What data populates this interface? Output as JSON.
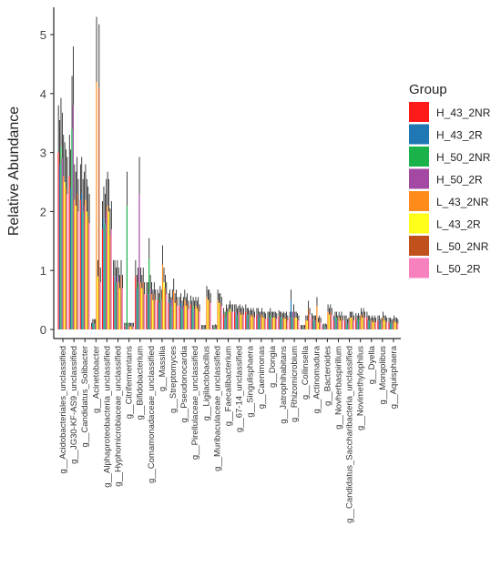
{
  "chart_data": {
    "type": "bar",
    "ylabel": "Relative Abundance",
    "xlabel": "",
    "ylim": [
      0,
      5.2
    ],
    "yticks": [
      0,
      1,
      2,
      3,
      4,
      5
    ],
    "grid": false,
    "legend_title": "Group",
    "legend_position": "right",
    "categories": [
      "g__Acidobacteriales_unclassified",
      "g__JG30-KF-AS9_unclassified",
      "g__Candidatus_Solibacter",
      "g__Acinetobacter",
      "g__Alphaproteobacteria_unclassified",
      "g__Hyphomicrobiaceae_unclassified",
      "g__Citrifermentans",
      "g__Bifidobacterium",
      "g__Comamonadaceae_unclassified",
      "g__Massilia",
      "g__Streptomyces",
      "g__Pseudonocardia",
      "g__Pirellulaceae_unclassified",
      "g__Ligilactobacillus",
      "g__Muribaculaceae_unclassified",
      "g__Faecalibacterium",
      "g__67-14_unclassified",
      "g__Singulisphaera",
      "g__Caenimonas",
      "g__Dongia",
      "g__Jatrophihabitans",
      "g__Rhizomicrobium",
      "g__Collinsella",
      "g__Actinomadura",
      "g__Bacteroides",
      "g__Novherbaspirillum",
      "g__Candidatus_Saccharibacteria_unclassified",
      "g__Novimethylophilus",
      "g__Dyella",
      "g__Mongolibus",
      "g__Aquisphaera"
    ],
    "series": [
      {
        "name": "H_43_2NR",
        "color": "#FF1A1A",
        "values": [
          3.0,
          2.6,
          2.2,
          0.05,
          1.7,
          0.9,
          0.05,
          0.9,
          0.6,
          0.5,
          0.45,
          0.4,
          0.42,
          0.02,
          0.02,
          0.25,
          0.3,
          0.3,
          0.25,
          0.2,
          0.22,
          0.2,
          0.02,
          0.18,
          0.03,
          0.15,
          0.15,
          0.18,
          0.2,
          0.15,
          0.12
        ]
      },
      {
        "name": "H_43_2R",
        "color": "#1F78B4",
        "values": [
          2.8,
          2.4,
          2.3,
          0.1,
          1.9,
          0.9,
          0.05,
          0.7,
          0.6,
          0.45,
          0.5,
          0.45,
          0.35,
          0.02,
          0.02,
          0.2,
          0.3,
          0.25,
          0.25,
          0.2,
          0.2,
          0.5,
          0.02,
          0.15,
          0.04,
          0.2,
          0.15,
          0.15,
          0.15,
          0.15,
          0.12
        ]
      },
      {
        "name": "H_50_2NR",
        "color": "#1BB24A",
        "values": [
          3.1,
          3.4,
          2.0,
          0.1,
          1.8,
          0.8,
          2.1,
          0.8,
          1.2,
          0.55,
          0.4,
          0.35,
          0.4,
          0.02,
          0.03,
          0.3,
          0.25,
          0.25,
          0.2,
          0.25,
          0.2,
          0.2,
          0.02,
          0.15,
          0.04,
          0.2,
          0.1,
          0.18,
          0.15,
          0.1,
          0.1
        ]
      },
      {
        "name": "H_50_2R",
        "color": "#A349A4",
        "values": [
          2.9,
          3.8,
          2.1,
          0.1,
          2.0,
          0.9,
          0.05,
          2.3,
          0.7,
          0.5,
          0.5,
          0.4,
          0.35,
          0.02,
          0.02,
          0.25,
          0.28,
          0.22,
          0.2,
          0.2,
          0.18,
          0.3,
          0.02,
          0.15,
          0.03,
          0.15,
          0.12,
          0.15,
          0.12,
          0.12,
          0.1
        ]
      },
      {
        "name": "L_43_2NR",
        "color": "#FF8C1A",
        "values": [
          2.6,
          2.2,
          2.2,
          4.2,
          2.1,
          0.8,
          0.05,
          0.8,
          0.6,
          1.1,
          0.65,
          0.5,
          0.4,
          0.55,
          0.5,
          0.3,
          0.3,
          0.25,
          0.25,
          0.2,
          0.2,
          0.2,
          0.15,
          0.4,
          0.3,
          0.2,
          0.2,
          0.25,
          0.15,
          0.2,
          0.15
        ]
      },
      {
        "name": "L_43_2R",
        "color": "#FFFF1A",
        "values": [
          2.5,
          2.1,
          2.0,
          0.9,
          2.0,
          0.7,
          0.05,
          0.7,
          0.5,
          0.8,
          0.45,
          0.4,
          0.35,
          0.5,
          0.45,
          0.35,
          0.25,
          0.22,
          0.2,
          0.2,
          0.18,
          0.2,
          0.15,
          0.12,
          0.25,
          0.15,
          0.2,
          0.2,
          0.12,
          0.15,
          0.12
        ]
      },
      {
        "name": "L_50_2NR",
        "color": "#C0501C",
        "values": [
          2.4,
          2.3,
          1.9,
          4.1,
          1.6,
          0.9,
          0.05,
          0.8,
          0.6,
          0.7,
          0.5,
          0.45,
          0.4,
          0.5,
          0.45,
          0.3,
          0.28,
          0.25,
          0.2,
          0.2,
          0.2,
          0.18,
          0.35,
          0.15,
          0.3,
          0.2,
          0.2,
          0.25,
          0.15,
          0.15,
          0.12
        ]
      },
      {
        "name": "L_50_2R",
        "color": "#F780BF",
        "values": [
          2.3,
          2.0,
          1.8,
          0.8,
          1.7,
          0.7,
          0.05,
          0.6,
          0.5,
          0.6,
          0.4,
          0.35,
          0.3,
          0.45,
          0.4,
          0.3,
          0.25,
          0.2,
          0.18,
          0.18,
          0.15,
          0.15,
          0.25,
          0.12,
          0.25,
          0.15,
          0.15,
          0.2,
          0.12,
          0.12,
          0.1
        ]
      }
    ]
  }
}
